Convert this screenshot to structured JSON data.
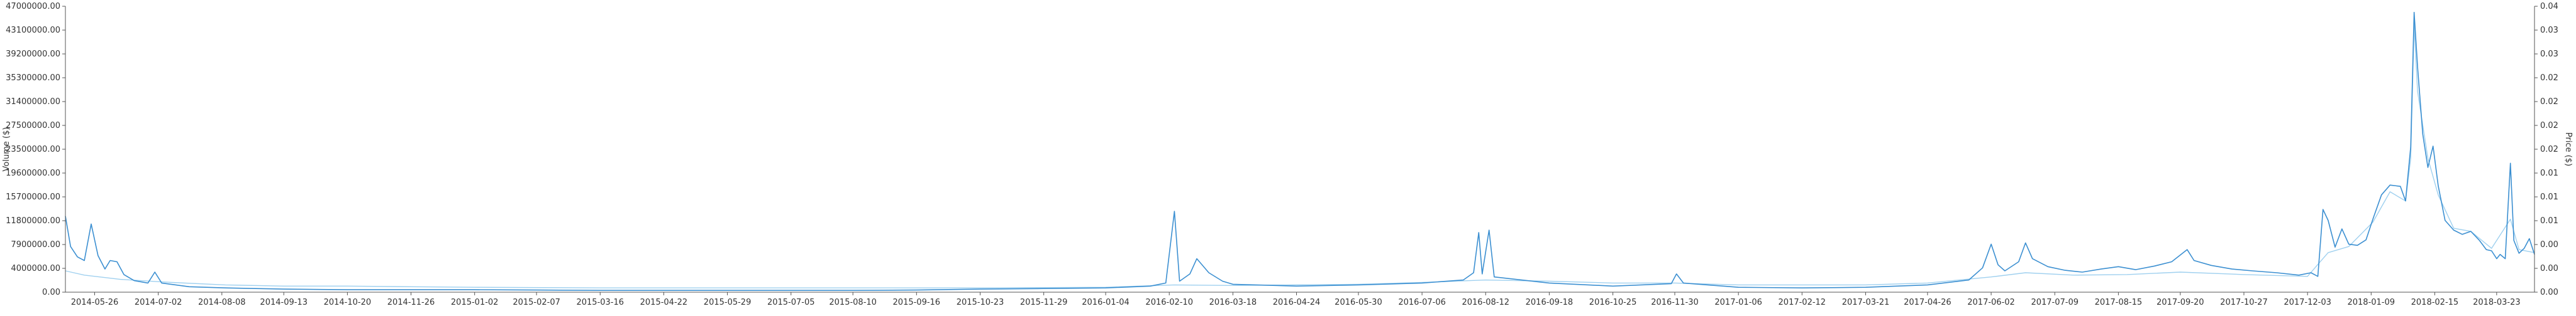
{
  "chart_data": {
    "type": "line",
    "title": "",
    "left_axis": {
      "label": "Volume ($)",
      "ylim": [
        0,
        47000000
      ],
      "ticks": [
        "0.00",
        "4000000.00",
        "7900000.00",
        "11800000.00",
        "15700000.00",
        "19600000.00",
        "23500000.00",
        "27500000.00",
        "31400000.00",
        "35300000.00",
        "39200000.00",
        "43100000.00",
        "47000000.00"
      ]
    },
    "right_axis": {
      "label": "Price ($)",
      "ticks": [
        "0.00",
        "0.00",
        "0.00",
        "0.01",
        "0.01",
        "0.01",
        "0.02",
        "0.02",
        "0.02",
        "0.02",
        "0.03",
        "0.03",
        "0.04"
      ]
    },
    "x_ticks": [
      "2014-05-26",
      "2014-07-02",
      "2014-08-08",
      "2014-09-13",
      "2014-10-20",
      "2014-11-26",
      "2015-01-02",
      "2015-02-07",
      "2015-03-16",
      "2015-04-22",
      "2015-05-29",
      "2015-07-05",
      "2015-08-10",
      "2015-09-16",
      "2015-10-23",
      "2015-11-29",
      "2016-01-04",
      "2016-02-10",
      "2016-03-18",
      "2016-04-24",
      "2016-05-30",
      "2016-07-06",
      "2016-08-12",
      "2016-09-18",
      "2016-10-25",
      "2016-11-30",
      "2017-01-06",
      "2017-02-12",
      "2017-03-21",
      "2017-04-26",
      "2017-06-02",
      "2017-07-09",
      "2017-08-15",
      "2017-09-20",
      "2017-10-27",
      "2017-12-03",
      "2018-01-09",
      "2018-02-15",
      "2018-03-23"
    ],
    "x_start_date": "2014-05-09",
    "x_end_date": "2018-04-14",
    "series": [
      {
        "name": "",
        "axis": "left",
        "color": "#3b8fd1",
        "points": [
          [
            "2014-05-09",
            12500000
          ],
          [
            "2014-05-12",
            7500000
          ],
          [
            "2014-05-16",
            5800000
          ],
          [
            "2014-05-20",
            5200000
          ],
          [
            "2014-05-24",
            11200000
          ],
          [
            "2014-05-28",
            6000000
          ],
          [
            "2014-06-01",
            3800000
          ],
          [
            "2014-06-04",
            5200000
          ],
          [
            "2014-06-08",
            5000000
          ],
          [
            "2014-06-12",
            2900000
          ],
          [
            "2014-06-18",
            1900000
          ],
          [
            "2014-06-26",
            1500000
          ],
          [
            "2014-06-30",
            3300000
          ],
          [
            "2014-07-04",
            1500000
          ],
          [
            "2014-07-20",
            900000
          ],
          [
            "2014-08-10",
            700000
          ],
          [
            "2014-09-13",
            500000
          ],
          [
            "2014-10-20",
            400000
          ],
          [
            "2014-11-26",
            400000
          ],
          [
            "2015-01-02",
            400000
          ],
          [
            "2015-02-07",
            350000
          ],
          [
            "2015-03-16",
            300000
          ],
          [
            "2015-04-22",
            300000
          ],
          [
            "2015-05-29",
            300000
          ],
          [
            "2015-07-05",
            300000
          ],
          [
            "2015-08-10",
            300000
          ],
          [
            "2015-09-16",
            350000
          ],
          [
            "2015-10-23",
            500000
          ],
          [
            "2015-11-29",
            600000
          ],
          [
            "2016-01-04",
            700000
          ],
          [
            "2016-01-30",
            1000000
          ],
          [
            "2016-02-08",
            1500000
          ],
          [
            "2016-02-13",
            13300000
          ],
          [
            "2016-02-16",
            1800000
          ],
          [
            "2016-02-22",
            3000000
          ],
          [
            "2016-02-26",
            5500000
          ],
          [
            "2016-03-04",
            3200000
          ],
          [
            "2016-03-12",
            1800000
          ],
          [
            "2016-03-18",
            1300000
          ],
          [
            "2016-04-24",
            1000000
          ],
          [
            "2016-05-30",
            1200000
          ],
          [
            "2016-07-06",
            1500000
          ],
          [
            "2016-07-30",
            2000000
          ],
          [
            "2016-08-05",
            3200000
          ],
          [
            "2016-08-08",
            9800000
          ],
          [
            "2016-08-10",
            3000000
          ],
          [
            "2016-08-14",
            10200000
          ],
          [
            "2016-08-17",
            2500000
          ],
          [
            "2016-09-18",
            1500000
          ],
          [
            "2016-10-25",
            1000000
          ],
          [
            "2016-11-28",
            1400000
          ],
          [
            "2016-12-01",
            3000000
          ],
          [
            "2016-12-05",
            1500000
          ],
          [
            "2017-01-06",
            800000
          ],
          [
            "2017-02-12",
            700000
          ],
          [
            "2017-03-21",
            800000
          ],
          [
            "2017-04-26",
            1200000
          ],
          [
            "2017-05-20",
            2000000
          ],
          [
            "2017-05-28",
            4000000
          ],
          [
            "2017-06-02",
            7900000
          ],
          [
            "2017-06-06",
            4500000
          ],
          [
            "2017-06-10",
            3500000
          ],
          [
            "2017-06-18",
            5000000
          ],
          [
            "2017-06-22",
            8100000
          ],
          [
            "2017-06-26",
            5500000
          ],
          [
            "2017-07-05",
            4200000
          ],
          [
            "2017-07-15",
            3600000
          ],
          [
            "2017-07-25",
            3300000
          ],
          [
            "2017-08-05",
            3800000
          ],
          [
            "2017-08-15",
            4200000
          ],
          [
            "2017-08-25",
            3700000
          ],
          [
            "2017-09-05",
            4300000
          ],
          [
            "2017-09-15",
            5000000
          ],
          [
            "2017-09-24",
            7000000
          ],
          [
            "2017-09-28",
            5200000
          ],
          [
            "2017-10-08",
            4400000
          ],
          [
            "2017-10-20",
            3800000
          ],
          [
            "2017-11-01",
            3500000
          ],
          [
            "2017-11-15",
            3200000
          ],
          [
            "2017-11-28",
            2800000
          ],
          [
            "2017-12-05",
            3200000
          ],
          [
            "2017-12-09",
            2600000
          ],
          [
            "2017-12-12",
            13600000
          ],
          [
            "2017-12-15",
            11800000
          ],
          [
            "2017-12-19",
            7400000
          ],
          [
            "2017-12-23",
            10400000
          ],
          [
            "2017-12-27",
            7900000
          ],
          [
            "2018-01-01",
            7700000
          ],
          [
            "2018-01-06",
            8600000
          ],
          [
            "2018-01-10",
            12000000
          ],
          [
            "2018-01-15",
            16000000
          ],
          [
            "2018-01-20",
            17600000
          ],
          [
            "2018-01-26",
            17400000
          ],
          [
            "2018-01-29",
            15000000
          ],
          [
            "2018-02-01",
            23900000
          ],
          [
            "2018-02-03",
            46000000
          ],
          [
            "2018-02-05",
            37000000
          ],
          [
            "2018-02-08",
            26000000
          ],
          [
            "2018-02-11",
            20500000
          ],
          [
            "2018-02-14",
            24000000
          ],
          [
            "2018-02-17",
            17500000
          ],
          [
            "2018-02-21",
            11800000
          ],
          [
            "2018-02-26",
            10200000
          ],
          [
            "2018-03-03",
            9500000
          ],
          [
            "2018-03-08",
            10000000
          ],
          [
            "2018-03-13",
            8500000
          ],
          [
            "2018-03-17",
            7000000
          ],
          [
            "2018-03-20",
            6800000
          ],
          [
            "2018-03-23",
            5500000
          ],
          [
            "2018-03-25",
            6200000
          ],
          [
            "2018-03-28",
            5500000
          ],
          [
            "2018-03-31",
            21200000
          ],
          [
            "2018-04-02",
            8500000
          ],
          [
            "2018-04-05",
            6400000
          ],
          [
            "2018-04-08",
            7200000
          ],
          [
            "2018-04-11",
            8800000
          ],
          [
            "2018-04-14",
            6200000
          ]
        ]
      },
      {
        "name": "",
        "axis": "right",
        "color": "#9fd0ef",
        "points": [
          [
            "2014-05-09",
            3500000
          ],
          [
            "2014-05-20",
            2800000
          ],
          [
            "2014-06-10",
            2100000
          ],
          [
            "2014-07-10",
            1600000
          ],
          [
            "2014-08-10",
            1200000
          ],
          [
            "2014-09-13",
            1000000
          ],
          [
            "2014-10-20",
            1000000
          ],
          [
            "2014-11-26",
            900000
          ],
          [
            "2015-01-02",
            800000
          ],
          [
            "2015-03-16",
            700000
          ],
          [
            "2015-05-29",
            700000
          ],
          [
            "2015-08-10",
            700000
          ],
          [
            "2015-10-23",
            700000
          ],
          [
            "2016-01-04",
            800000
          ],
          [
            "2016-02-13",
            1200000
          ],
          [
            "2016-03-18",
            1100000
          ],
          [
            "2016-05-30",
            1300000
          ],
          [
            "2016-07-06",
            1600000
          ],
          [
            "2016-08-12",
            2000000
          ],
          [
            "2016-09-18",
            1800000
          ],
          [
            "2016-10-25",
            1500000
          ],
          [
            "2016-11-30",
            1500000
          ],
          [
            "2017-01-06",
            1200000
          ],
          [
            "2017-03-21",
            1200000
          ],
          [
            "2017-04-26",
            1500000
          ],
          [
            "2017-06-02",
            2500000
          ],
          [
            "2017-06-22",
            3200000
          ],
          [
            "2017-07-20",
            2800000
          ],
          [
            "2017-08-20",
            2900000
          ],
          [
            "2017-09-20",
            3300000
          ],
          [
            "2017-10-27",
            2900000
          ],
          [
            "2017-12-03",
            2600000
          ],
          [
            "2017-12-15",
            6500000
          ],
          [
            "2017-12-27",
            7500000
          ],
          [
            "2018-01-10",
            11500000
          ],
          [
            "2018-01-20",
            16500000
          ],
          [
            "2018-01-29",
            15000000
          ],
          [
            "2018-02-01",
            22000000
          ],
          [
            "2018-02-03",
            44000000
          ],
          [
            "2018-02-05",
            33000000
          ],
          [
            "2018-02-11",
            22000000
          ],
          [
            "2018-02-17",
            16000000
          ],
          [
            "2018-02-26",
            10500000
          ],
          [
            "2018-03-08",
            10000000
          ],
          [
            "2018-03-20",
            7200000
          ],
          [
            "2018-03-31",
            12000000
          ],
          [
            "2018-04-05",
            7000000
          ],
          [
            "2018-04-14",
            6500000
          ]
        ]
      }
    ]
  }
}
